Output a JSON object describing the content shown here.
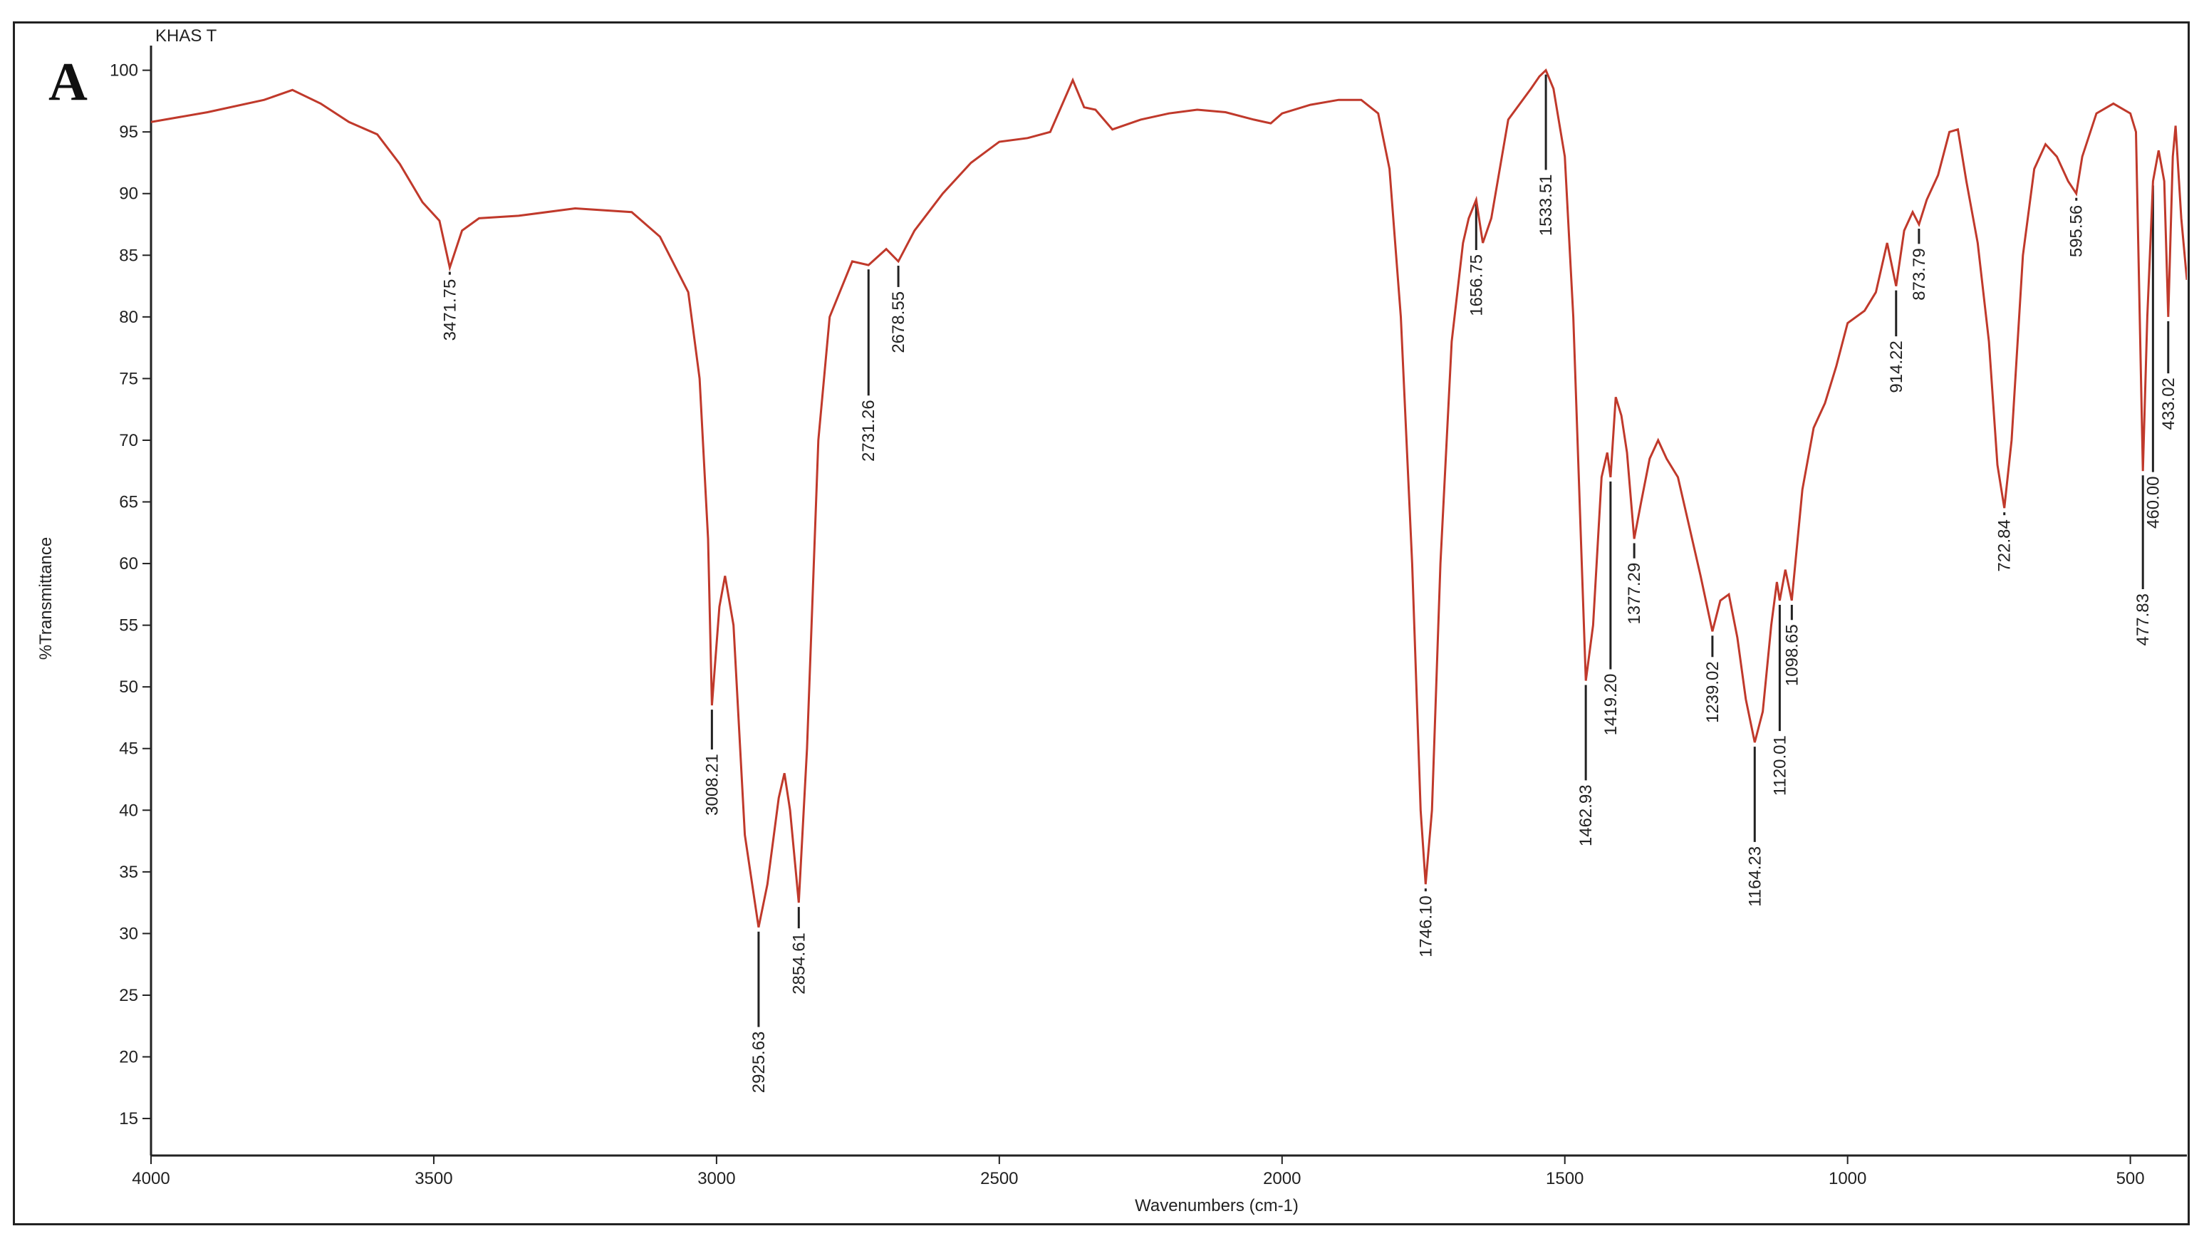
{
  "panel_letter": "A",
  "chart_data": {
    "type": "line",
    "title": "KHAS T",
    "xlabel": "Wavenumbers (cm-1)",
    "ylabel": "%Transmittance",
    "xlim": [
      4000,
      400
    ],
    "ylim": [
      12,
      102
    ],
    "x_ticks": [
      4000,
      3500,
      3000,
      2500,
      2000,
      1500,
      1000,
      500
    ],
    "y_ticks": [
      15,
      20,
      25,
      30,
      35,
      40,
      45,
      50,
      55,
      60,
      65,
      70,
      75,
      80,
      85,
      90,
      95,
      100
    ],
    "grid": false,
    "line_color": "#c0392b",
    "series": [
      {
        "points": [
          [
            4000,
            95.8
          ],
          [
            3900,
            96.6
          ],
          [
            3800,
            97.6
          ],
          [
            3750,
            98.4
          ],
          [
            3700,
            97.3
          ],
          [
            3650,
            95.8
          ],
          [
            3600,
            94.8
          ],
          [
            3560,
            92.4
          ],
          [
            3520,
            89.3
          ],
          [
            3490,
            87.8
          ],
          [
            3471.75,
            84.0
          ],
          [
            3450,
            87.0
          ],
          [
            3420,
            88.0
          ],
          [
            3350,
            88.2
          ],
          [
            3250,
            88.8
          ],
          [
            3150,
            88.5
          ],
          [
            3100,
            86.5
          ],
          [
            3050,
            82.0
          ],
          [
            3030,
            75.0
          ],
          [
            3015,
            62.0
          ],
          [
            3008.21,
            48.5
          ],
          [
            2995,
            56.5
          ],
          [
            2985,
            59.0
          ],
          [
            2970,
            55.0
          ],
          [
            2950,
            38.0
          ],
          [
            2925.63,
            30.5
          ],
          [
            2910,
            34.0
          ],
          [
            2890,
            41.0
          ],
          [
            2880,
            43.0
          ],
          [
            2870,
            40.0
          ],
          [
            2854.61,
            32.5
          ],
          [
            2840,
            45.0
          ],
          [
            2820,
            70.0
          ],
          [
            2800,
            80.0
          ],
          [
            2760,
            84.5
          ],
          [
            2731.26,
            84.2
          ],
          [
            2700,
            85.5
          ],
          [
            2678.55,
            84.5
          ],
          [
            2650,
            87.0
          ],
          [
            2600,
            90.0
          ],
          [
            2550,
            92.5
          ],
          [
            2500,
            94.2
          ],
          [
            2450,
            94.5
          ],
          [
            2410,
            95.0
          ],
          [
            2370,
            99.2
          ],
          [
            2350,
            97.0
          ],
          [
            2330,
            96.8
          ],
          [
            2300,
            95.2
          ],
          [
            2250,
            96.0
          ],
          [
            2200,
            96.5
          ],
          [
            2150,
            96.8
          ],
          [
            2100,
            96.6
          ],
          [
            2050,
            96.0
          ],
          [
            2020,
            95.7
          ],
          [
            2000,
            96.5
          ],
          [
            1950,
            97.2
          ],
          [
            1900,
            97.6
          ],
          [
            1860,
            97.6
          ],
          [
            1830,
            96.5
          ],
          [
            1810,
            92.0
          ],
          [
            1790,
            80.0
          ],
          [
            1770,
            60.0
          ],
          [
            1755,
            40.0
          ],
          [
            1746.1,
            34.0
          ],
          [
            1735,
            40.0
          ],
          [
            1720,
            60.0
          ],
          [
            1700,
            78.0
          ],
          [
            1680,
            86.0
          ],
          [
            1670,
            88.0
          ],
          [
            1656.75,
            89.5
          ],
          [
            1645,
            86.0
          ],
          [
            1630,
            88.0
          ],
          [
            1600,
            96.0
          ],
          [
            1560,
            98.5
          ],
          [
            1545,
            99.5
          ],
          [
            1533.51,
            100.0
          ],
          [
            1520,
            98.5
          ],
          [
            1500,
            93.0
          ],
          [
            1485,
            80.0
          ],
          [
            1470,
            60.0
          ],
          [
            1462.93,
            50.5
          ],
          [
            1450,
            55.0
          ],
          [
            1435,
            67.0
          ],
          [
            1425,
            69.0
          ],
          [
            1419.2,
            67.0
          ],
          [
            1410,
            73.5
          ],
          [
            1400,
            72.0
          ],
          [
            1390,
            69.0
          ],
          [
            1377.29,
            62.0
          ],
          [
            1365,
            65.0
          ],
          [
            1350,
            68.5
          ],
          [
            1335,
            70.0
          ],
          [
            1320,
            68.5
          ],
          [
            1300,
            67.0
          ],
          [
            1280,
            63.0
          ],
          [
            1260,
            59.0
          ],
          [
            1239.02,
            54.5
          ],
          [
            1225,
            57.0
          ],
          [
            1210,
            57.5
          ],
          [
            1195,
            54.0
          ],
          [
            1180,
            49.0
          ],
          [
            1164.23,
            45.5
          ],
          [
            1150,
            48.0
          ],
          [
            1135,
            55.0
          ],
          [
            1125,
            58.5
          ],
          [
            1120.01,
            57.0
          ],
          [
            1110,
            59.5
          ],
          [
            1098.65,
            57.0
          ],
          [
            1080,
            66.0
          ],
          [
            1060,
            71.0
          ],
          [
            1040,
            73.0
          ],
          [
            1020,
            76.0
          ],
          [
            1000,
            79.5
          ],
          [
            970,
            80.5
          ],
          [
            950,
            82.0
          ],
          [
            930,
            86.0
          ],
          [
            914.22,
            82.5
          ],
          [
            900,
            87.0
          ],
          [
            885,
            88.5
          ],
          [
            873.79,
            87.5
          ],
          [
            860,
            89.5
          ],
          [
            840,
            91.5
          ],
          [
            820,
            95.0
          ],
          [
            805,
            95.2
          ],
          [
            790,
            91.0
          ],
          [
            770,
            86.0
          ],
          [
            750,
            78.0
          ],
          [
            735,
            68.0
          ],
          [
            722.84,
            64.5
          ],
          [
            710,
            70.0
          ],
          [
            690,
            85.0
          ],
          [
            670,
            92.0
          ],
          [
            650,
            94.0
          ],
          [
            630,
            93.0
          ],
          [
            610,
            91.0
          ],
          [
            595.56,
            90.0
          ],
          [
            585,
            93.0
          ],
          [
            560,
            96.5
          ],
          [
            530,
            97.3
          ],
          [
            500,
            96.5
          ],
          [
            490,
            95.0
          ],
          [
            477.83,
            67.5
          ],
          [
            470,
            80.0
          ],
          [
            460.0,
            91.0
          ],
          [
            450,
            93.5
          ],
          [
            440,
            91.0
          ],
          [
            433.02,
            80.0
          ],
          [
            425,
            93.0
          ],
          [
            420,
            95.5
          ],
          [
            410,
            88.0
          ],
          [
            400,
            83.0
          ]
        ]
      }
    ],
    "peaks": [
      {
        "label": "3471.75",
        "x": 3471.75,
        "y": 84.0,
        "len": 0
      },
      {
        "label": "3008.21",
        "x": 3008.21,
        "y": 48.5,
        "len": 3
      },
      {
        "label": "2925.63",
        "x": 2925.63,
        "y": 30.5,
        "len": 7.5
      },
      {
        "label": "2854.61",
        "x": 2854.61,
        "y": 32.5,
        "len": 1.5
      },
      {
        "label": "2731.26",
        "x": 2731.26,
        "y": 84.2,
        "len": 10
      },
      {
        "label": "2678.55",
        "x": 2678.55,
        "y": 84.5,
        "len": 1.5
      },
      {
        "label": "1746.10",
        "x": 1746.1,
        "y": 34.0,
        "len": 0
      },
      {
        "label": "1656.75",
        "x": 1656.75,
        "y": 89.5,
        "len": 3.5
      },
      {
        "label": "1533.51",
        "x": 1533.51,
        "y": 100.0,
        "len": 7.5
      },
      {
        "label": "1462.93",
        "x": 1462.93,
        "y": 50.5,
        "len": 7.5
      },
      {
        "label": "1419.20",
        "x": 1419.2,
        "y": 67.0,
        "len": 15
      },
      {
        "label": "1377.29",
        "x": 1377.29,
        "y": 62.0,
        "len": 1
      },
      {
        "label": "1239.02",
        "x": 1239.02,
        "y": 54.5,
        "len": 1.5
      },
      {
        "label": "1164.23",
        "x": 1164.23,
        "y": 45.5,
        "len": 7.5
      },
      {
        "label": "1120.01",
        "x": 1120.01,
        "y": 57.0,
        "len": 10
      },
      {
        "label": "1098.65",
        "x": 1098.65,
        "y": 57.0,
        "len": 1
      },
      {
        "label": "914.22",
        "x": 914.22,
        "y": 82.5,
        "len": 3.5
      },
      {
        "label": "873.79",
        "x": 873.79,
        "y": 87.5,
        "len": 1
      },
      {
        "label": "722.84",
        "x": 722.84,
        "y": 64.5,
        "len": 0
      },
      {
        "label": "595.56",
        "x": 595.56,
        "y": 90.0,
        "len": 0
      },
      {
        "label": "477.83",
        "x": 477.83,
        "y": 67.5,
        "len": 9
      },
      {
        "label": "460.00",
        "x": 460.0,
        "y": 91.0,
        "len": 23
      },
      {
        "label": "433.02",
        "x": 433.02,
        "y": 80.0,
        "len": 4
      }
    ]
  }
}
